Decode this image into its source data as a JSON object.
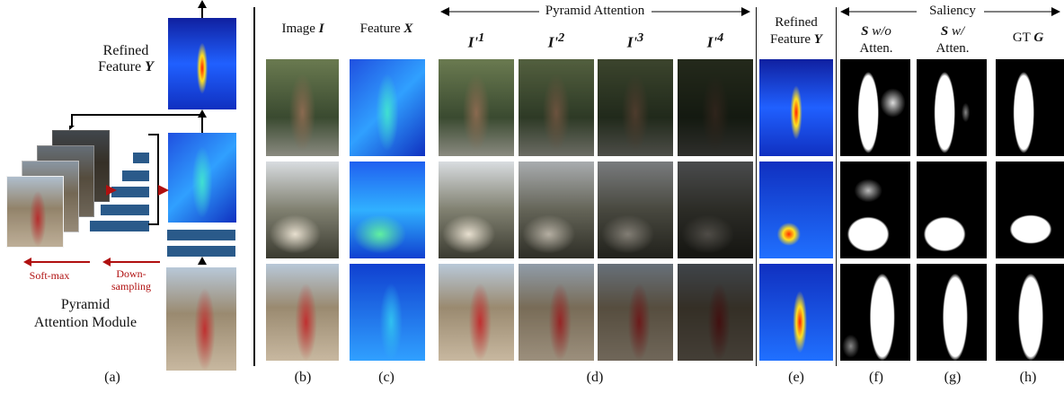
{
  "panel_a": {
    "refined": "Refined",
    "feature": "Feature",
    "feature_symbol": "Y",
    "softmax": "Soft-max",
    "down": "Down-",
    "sampling": "sampling",
    "module_1": "Pyramid",
    "module_2": "Attention Module",
    "label": "(a)"
  },
  "groups": {
    "pyramid_attention": "Pyramid Attention",
    "saliency": "Saliency"
  },
  "headers": {
    "image": {
      "text": "Image",
      "symbol": "I"
    },
    "feature": {
      "text": "Feature",
      "symbol": "X"
    },
    "att1": {
      "symbol": "I'",
      "sup": "1"
    },
    "att2": {
      "symbol": "I'",
      "sup": "2"
    },
    "att3": {
      "symbol": "I'",
      "sup": "3"
    },
    "att4": {
      "symbol": "I'",
      "sup": "4"
    },
    "refined": {
      "line1": "Refined",
      "text": "Feature",
      "symbol": "Y"
    },
    "wo": {
      "symbol": "S",
      "text": "w/o",
      "line2": "Atten."
    },
    "w": {
      "symbol": "S",
      "text": "w/",
      "line2": "Atten."
    },
    "gt": {
      "text": "GT",
      "symbol": "G"
    }
  },
  "labels": [
    "(b)",
    "(c)",
    "(d)",
    "(e)",
    "(f)",
    "(g)",
    "(h)"
  ]
}
